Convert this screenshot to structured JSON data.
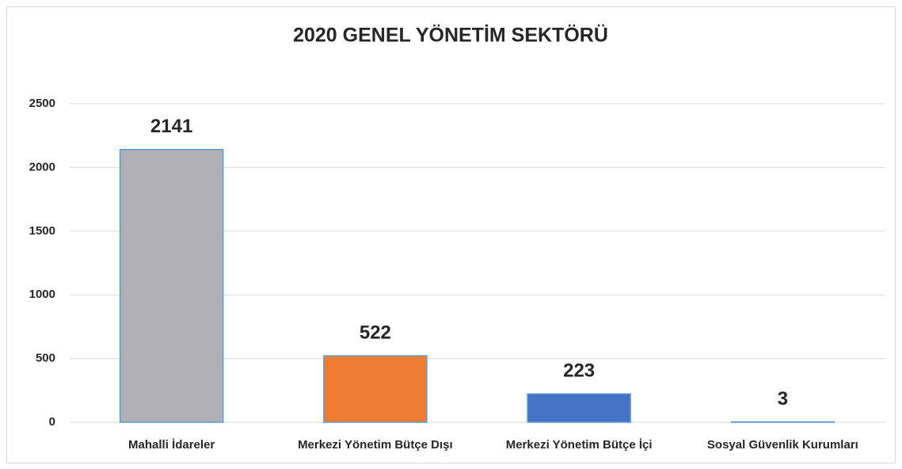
{
  "chart_data": {
    "type": "bar",
    "title": "2020 GENEL YÖNETİM SEKTÖRÜ",
    "categories": [
      "Mahalli İdareler",
      "Merkezi Yönetim Bütçe Dışı",
      "Merkezi Yönetim Bütçe İçi",
      "Sosyal Güvenlik Kurumları"
    ],
    "values": [
      2141,
      522,
      223,
      3
    ],
    "colors": [
      "#b1b1b5",
      "#ed7d31",
      "#4472c4",
      "#5b9bd5"
    ],
    "ylim": [
      0,
      2500
    ],
    "yticks": [
      0,
      500,
      1000,
      1500,
      2000,
      2500
    ],
    "grid": true
  }
}
